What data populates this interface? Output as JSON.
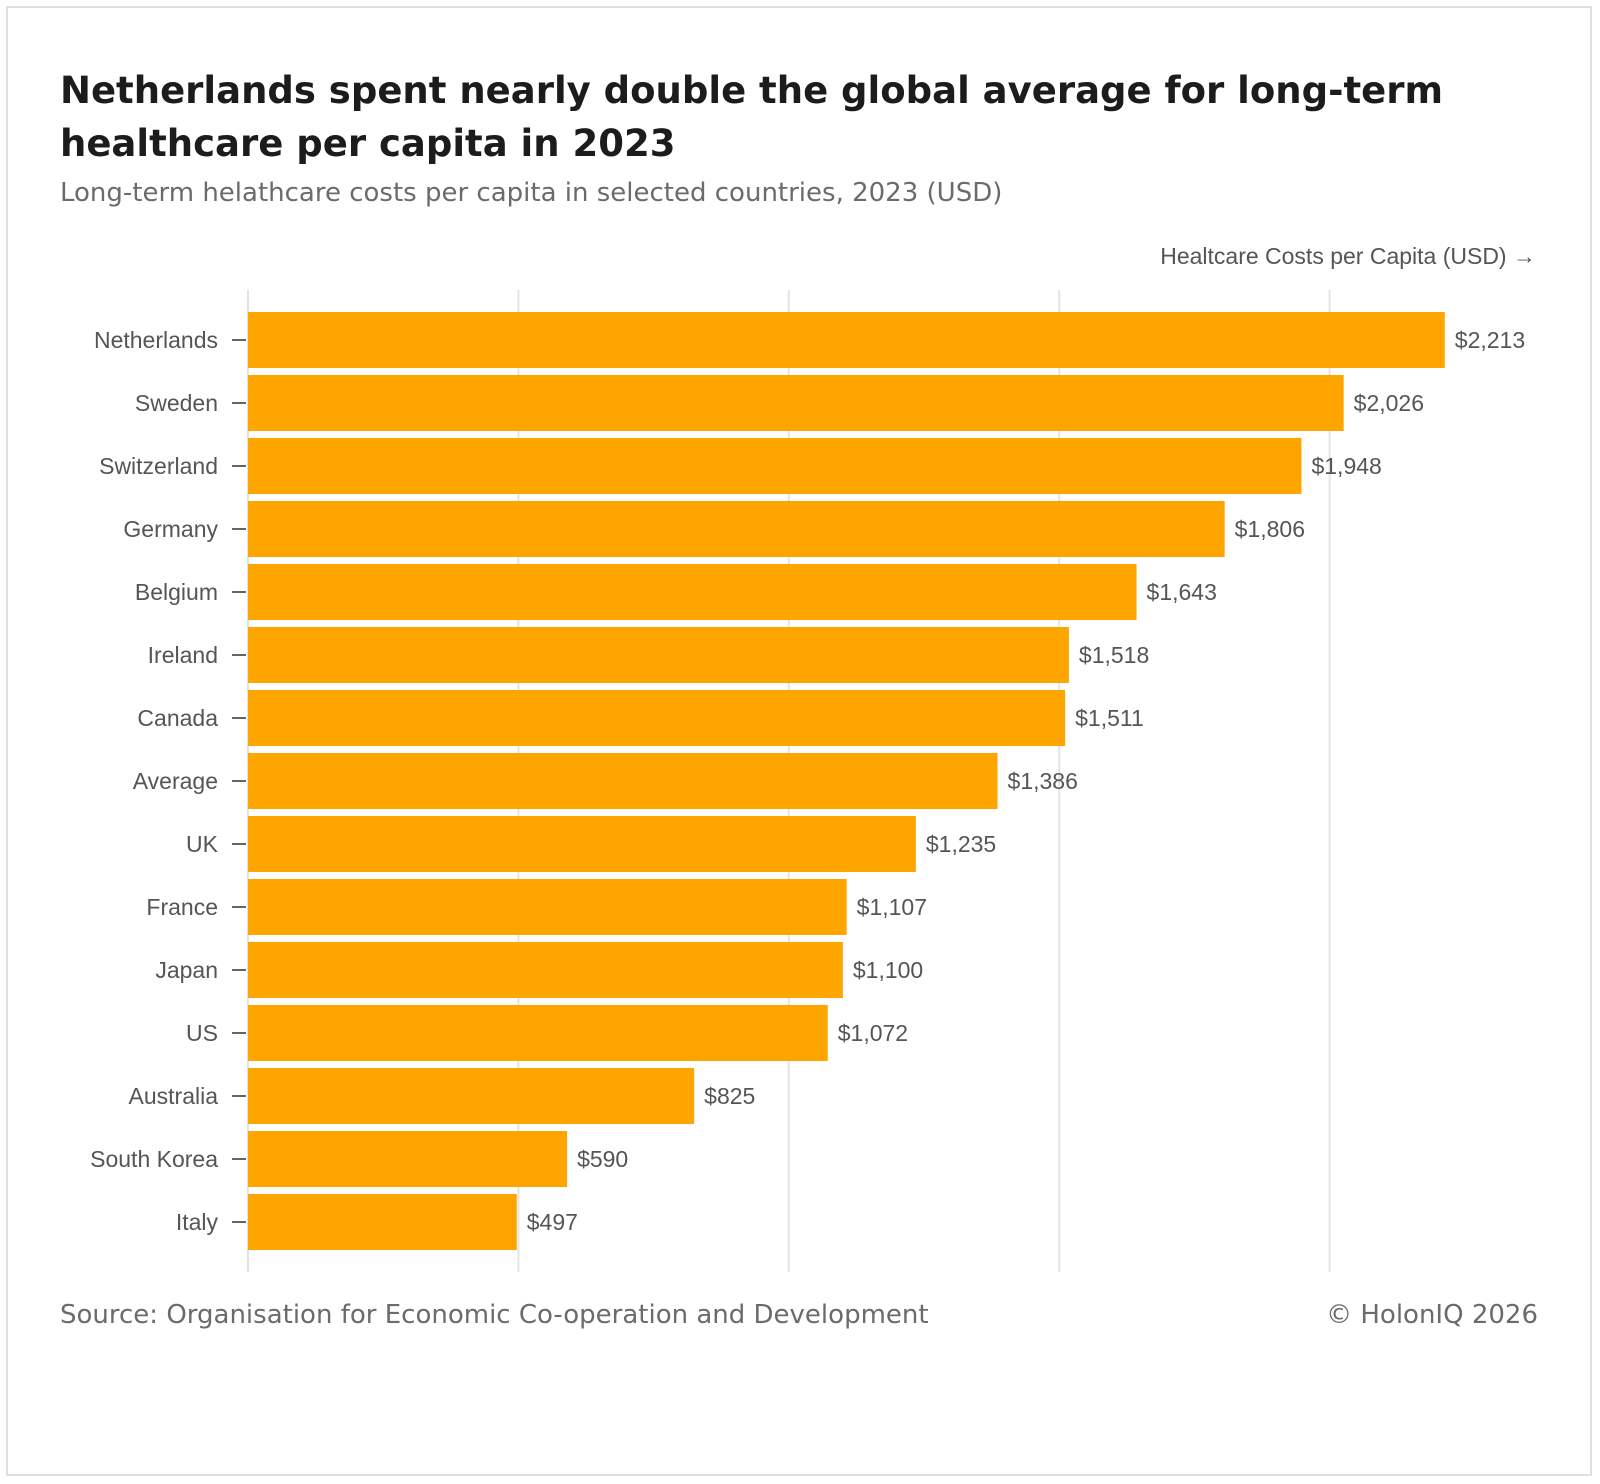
{
  "title": "Netherlands spent nearly double the global average for long-term healthcare per capita in 2023",
  "subtitle": "Long-term helathcare costs per capita in selected countries, 2023 (USD)",
  "source": "Source: Organisation for Economic Co-operation and Development",
  "copyright": "© HolonIQ 2026",
  "colors": {
    "bar": "#ffa500",
    "grid": "#e4e4e4",
    "text": "#555555"
  },
  "chart_data": {
    "type": "bar",
    "orientation": "horizontal",
    "categories": [
      "Netherlands",
      "Sweden",
      "Switzerland",
      "Germany",
      "Belgium",
      "Ireland",
      "Canada",
      "Average",
      "UK",
      "France",
      "Japan",
      "US",
      "Australia",
      "South Korea",
      "Italy"
    ],
    "values": [
      2213,
      2026,
      1948,
      1806,
      1643,
      1518,
      1511,
      1386,
      1235,
      1107,
      1100,
      1072,
      825,
      590,
      497
    ],
    "value_labels": [
      "$2,213",
      "$2,026",
      "$1,948",
      "$1,806",
      "$1,643",
      "$1,518",
      "$1,511",
      "$1,386",
      "$1,235",
      "$1,107",
      "$1,100",
      "$1,072",
      "$825",
      "$590",
      "$497"
    ],
    "xlabel": "Healtcare Costs per Capita (USD) →",
    "ylabel": "",
    "xlim": [
      0,
      2500
    ],
    "gridlines": [
      0,
      500,
      1000,
      1500,
      2000
    ],
    "grid": true,
    "legend": "none"
  }
}
